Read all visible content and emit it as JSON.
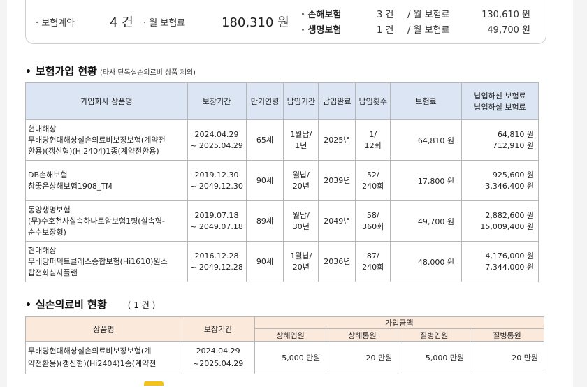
{
  "summary": {
    "contracts_label": "· 보험계약",
    "contracts_count": "4 건",
    "monthly_label": "· 월 보험료",
    "monthly_total": "180,310 원",
    "nonlife": {
      "label": "· 손해보험",
      "count": "3 건",
      "sep": "/ 월 보험료",
      "amount": "130,610 원"
    },
    "life": {
      "label": "· 생명보험",
      "count": "1 건",
      "sep": "/ 월 보험료",
      "amount": "49,700 원"
    }
  },
  "section1": {
    "bullet": "•",
    "title": "보험가입 현황",
    "note": "(타사 단독실손의료비 상품 제외)",
    "headers": [
      "가입회사 상품명",
      "보장기간",
      "만기연령",
      "납입기간",
      "납입완료",
      "납입횟수",
      "보험료",
      "납입하신 보험료",
      "납입하실 보험료"
    ],
    "rows": [
      {
        "company": "현대해상",
        "product1": "무배당현대해상실손의료비보장보험(계약전",
        "product2": "환용)(갱신형)(Hi2404)1종(계약전환용)",
        "period1": "2024.04.29",
        "period2": "~ 2025.04.29",
        "age": "65세",
        "pay1": "1월납/",
        "pay2": "1년",
        "done": "2025년",
        "cnt1": "1/",
        "cnt2": "12회",
        "premium": "64,810 원",
        "paid": "64,810 원",
        "topay": "712,910 원"
      },
      {
        "company": "DB손해보험",
        "product1": "참좋은상해보험1908_TM",
        "product2": "",
        "period1": "2019.12.30",
        "period2": "~ 2049.12.30",
        "age": "90세",
        "pay1": "월납/",
        "pay2": "20년",
        "done": "2039년",
        "cnt1": "52/",
        "cnt2": "240회",
        "premium": "17,800 원",
        "paid": "925,600 원",
        "topay": "3,346,400 원"
      },
      {
        "company": "동양생명보험",
        "product1": "(무)수호천사실속하나로암보험1형(실속형-",
        "product2": "순수보장형)",
        "period1": "2019.07.18",
        "period2": "~ 2049.07.18",
        "age": "89세",
        "pay1": "월납/",
        "pay2": "30년",
        "done": "2049년",
        "cnt1": "58/",
        "cnt2": "360회",
        "premium": "49,700 원",
        "paid": "2,882,600 원",
        "topay": "15,009,400 원"
      },
      {
        "company": "현대해상",
        "product1": "무배당퍼펙트클래스종합보험(Hi1610)원스",
        "product2": "탑전화심사플랜",
        "period1": "2016.12.28",
        "period2": "~ 2049.12.28",
        "age": "90세",
        "pay1": "1월납/",
        "pay2": "20년",
        "done": "2036년",
        "cnt1": "87/",
        "cnt2": "240회",
        "premium": "48,000 원",
        "paid": "4,176,000 원",
        "topay": "7,344,000 원"
      }
    ]
  },
  "section2": {
    "bullet": "•",
    "title": "실손의료비 현황",
    "count": "( 1 건 )",
    "headers": {
      "product": "상품명",
      "period": "보장기간",
      "group": "가입금액",
      "cols": [
        "상해입원",
        "상해통원",
        "질병입원",
        "질병통원"
      ]
    },
    "rows": [
      {
        "product1": "무배당현대해상실손의료비보장보험(계",
        "product2": "약전환용)(갱신형)(Hi2404)1종(계약전",
        "period1": "2024.04.29",
        "period2": "~2025.04.29",
        "v1": "5,000 만원",
        "v2": "20 만원",
        "v3": "5,000 만원",
        "v4": "20 만원"
      }
    ]
  }
}
